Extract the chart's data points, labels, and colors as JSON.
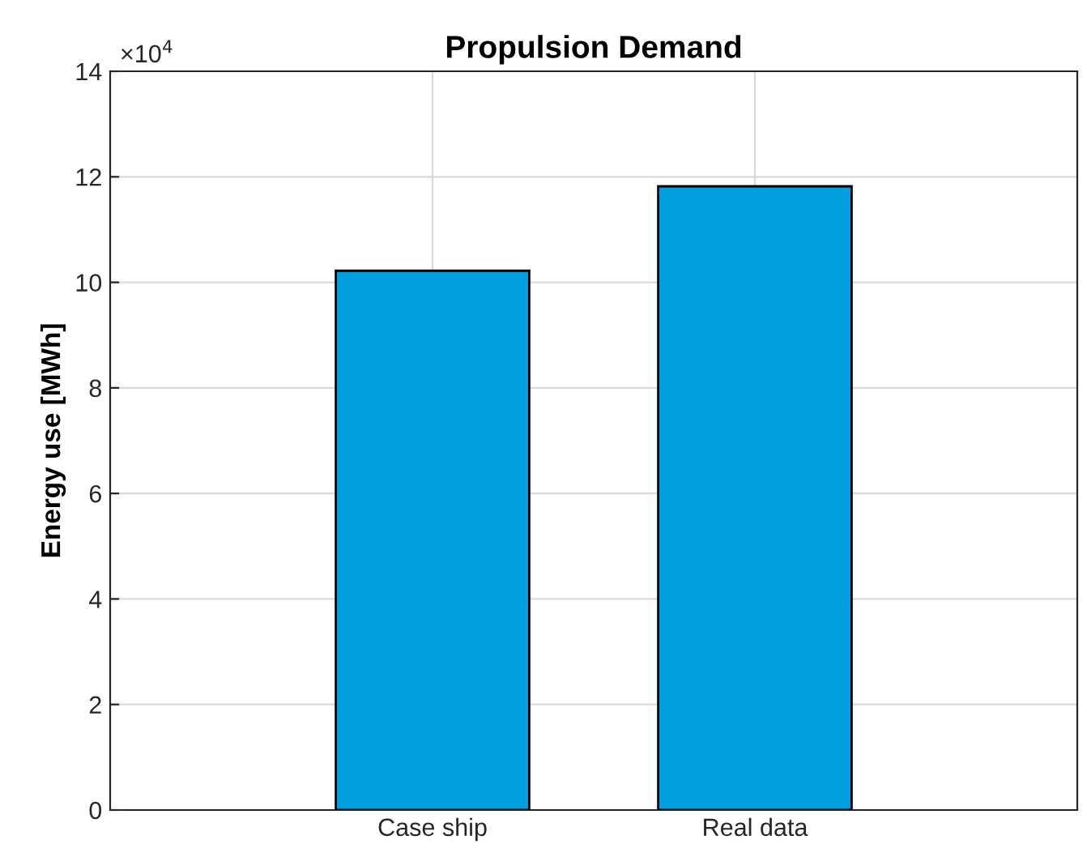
{
  "chart_data": {
    "type": "bar",
    "title": "Propulsion Demand",
    "ylabel": "Energy use [MWh]",
    "categories": [
      "Case ship",
      "Real data"
    ],
    "values": [
      10.22,
      11.82
    ],
    "color": "#00a0e0",
    "ylim": [
      0,
      14
    ],
    "yticks": [
      0,
      2,
      4,
      6,
      8,
      10,
      12,
      14
    ],
    "annotations": [
      "×10$^{4}$"
    ],
    "grid": true
  }
}
